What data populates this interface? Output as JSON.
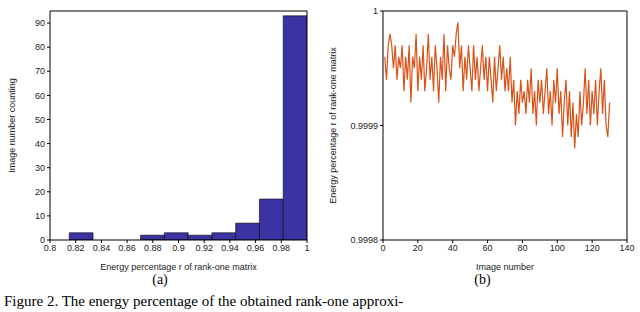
{
  "caption": "Figure 2. The energy percentage of the obtained rank-one approxi-",
  "chart_data": [
    {
      "type": "histogram",
      "title": "(a)",
      "xlabel": "Energy percentage r of rank-one matrix",
      "ylabel": "Image number counting",
      "bins": [
        0.815,
        0.8335,
        0.852,
        0.8705,
        0.889,
        0.9075,
        0.926,
        0.9445,
        0.963,
        0.9815,
        1.0
      ],
      "values": [
        3,
        0,
        0,
        2,
        3,
        2,
        3,
        7,
        17,
        93
      ],
      "color": "#3b33a3",
      "xlim": [
        0.8,
        1
      ],
      "xticks": [
        0.8,
        0.82,
        0.84,
        0.86,
        0.88,
        0.9,
        0.92,
        0.94,
        0.96,
        0.98,
        1
      ],
      "ylim": [
        0,
        95
      ],
      "yticks": [
        0,
        10,
        20,
        30,
        40,
        50,
        60,
        70,
        80,
        90
      ],
      "grid": false
    },
    {
      "type": "line",
      "title": "(b)",
      "xlabel": "Image number",
      "ylabel": "Energy percentage r of rank-one matrix",
      "x": [
        1,
        2,
        3,
        4,
        5,
        6,
        7,
        8,
        9,
        10,
        11,
        12,
        13,
        14,
        15,
        16,
        17,
        18,
        19,
        20,
        21,
        22,
        23,
        24,
        25,
        26,
        27,
        28,
        29,
        30,
        31,
        32,
        33,
        34,
        35,
        36,
        37,
        38,
        39,
        40,
        41,
        42,
        43,
        44,
        45,
        46,
        47,
        48,
        49,
        50,
        51,
        52,
        53,
        54,
        55,
        56,
        57,
        58,
        59,
        60,
        61,
        62,
        63,
        64,
        65,
        66,
        67,
        68,
        69,
        70,
        71,
        72,
        73,
        74,
        75,
        76,
        77,
        78,
        79,
        80,
        81,
        82,
        83,
        84,
        85,
        86,
        87,
        88,
        89,
        90,
        91,
        92,
        93,
        94,
        95,
        96,
        97,
        98,
        99,
        100,
        101,
        102,
        103,
        104,
        105,
        106,
        107,
        108,
        109,
        110,
        111,
        112,
        113,
        114,
        115,
        116,
        117,
        118,
        119,
        120,
        121,
        122,
        123,
        124,
        125,
        126,
        127,
        128,
        129,
        130
      ],
      "values": [
        0.99996,
        0.99994,
        0.99997,
        0.99998,
        0.99997,
        0.99995,
        0.99997,
        0.99994,
        0.99996,
        0.99995,
        0.99997,
        0.99993,
        0.99996,
        0.99994,
        0.99997,
        0.99992,
        0.99996,
        0.99995,
        0.99998,
        0.99993,
        0.99996,
        0.99994,
        0.99997,
        0.99993,
        0.99995,
        0.99998,
        0.99994,
        0.99996,
        0.99993,
        0.99997,
        0.99995,
        0.99992,
        0.99996,
        0.99994,
        0.99998,
        0.99993,
        0.99997,
        0.99995,
        0.99994,
        0.99997,
        0.99996,
        0.99998,
        0.99999,
        0.99995,
        0.99997,
        0.99993,
        0.99996,
        0.99994,
        0.99997,
        0.99995,
        0.99993,
        0.99997,
        0.99994,
        0.99996,
        0.99993,
        0.99995,
        0.99997,
        0.99994,
        0.99996,
        0.99993,
        0.99996,
        0.99994,
        0.99992,
        0.99996,
        0.99993,
        0.99995,
        0.99997,
        0.99994,
        0.99996,
        0.99993,
        0.99995,
        0.99993,
        0.99996,
        0.99992,
        0.99994,
        0.9999,
        0.99993,
        0.99991,
        0.99994,
        0.99992,
        0.99993,
        0.99991,
        0.99994,
        0.99992,
        0.99995,
        0.99991,
        0.99993,
        0.9999,
        0.99994,
        0.99992,
        0.99994,
        0.99991,
        0.99993,
        0.99995,
        0.99991,
        0.99993,
        0.9999,
        0.99994,
        0.99992,
        0.99995,
        0.99991,
        0.99993,
        0.99989,
        0.99992,
        0.99994,
        0.9999,
        0.99993,
        0.99989,
        0.99992,
        0.99988,
        0.99991,
        0.99989,
        0.99993,
        0.9999,
        0.99992,
        0.99995,
        0.99991,
        0.99994,
        0.9999,
        0.99993,
        0.99991,
        0.99994,
        0.9999,
        0.99993,
        0.99995,
        0.99991,
        0.99994,
        0.9999,
        0.99989,
        0.99992
      ],
      "color": "#d95319",
      "xlim": [
        0,
        140
      ],
      "xticks": [
        0,
        20,
        40,
        60,
        80,
        100,
        120,
        140
      ],
      "ylim": [
        0.9998,
        1
      ],
      "yticks": [
        0.9998,
        0.9999,
        1
      ],
      "grid": false
    }
  ]
}
